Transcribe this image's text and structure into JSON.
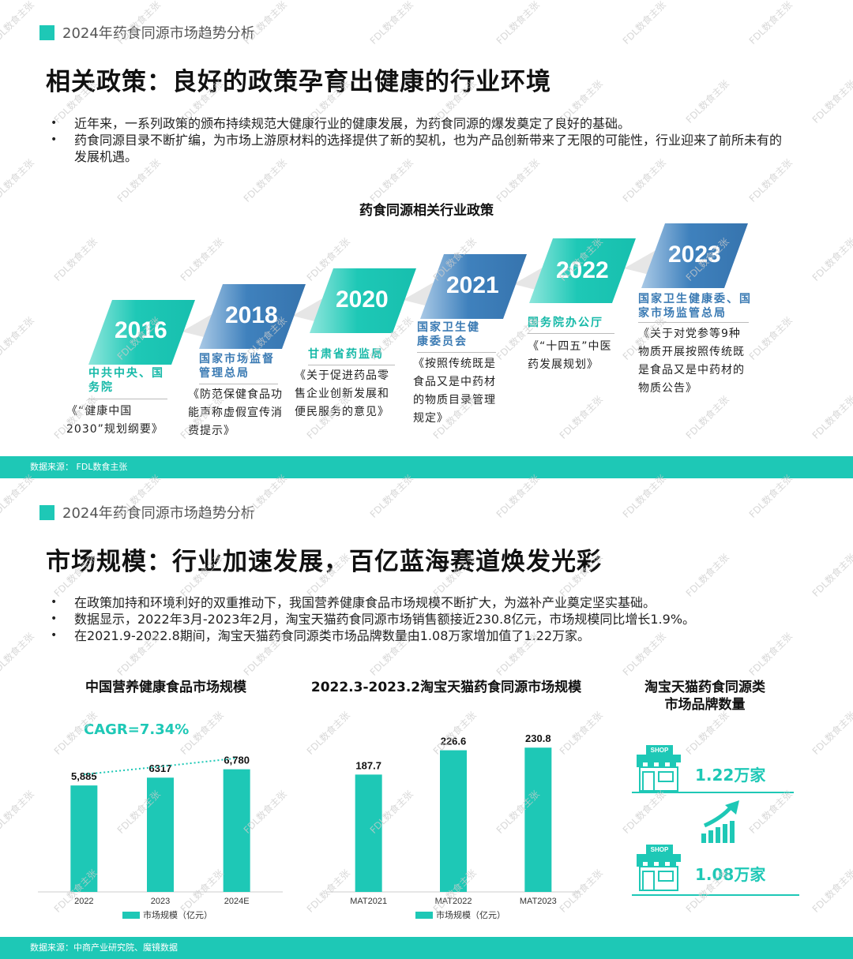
{
  "slide1": {
    "tag": "2024年药食同源市场趋势分析",
    "title": "相关政策：良好的政策孕育出健康的行业环境",
    "bullets": [
      "近年来，一系列政策的颁布持续规范大健康行业的健康发展，为药食同源的爆发奠定了良好的基础。",
      "药食同源目录不断扩编，为市场上游原材料的选择提供了新的契机，也为产品创新带来了无限的可能性，行业迎来了前所未有的发展机遇。"
    ],
    "timeline_title": "药食同源相关行业政策",
    "steps": [
      {
        "year": "2016",
        "org": "中共中央、国务院",
        "doc": "《“健康中国2030”规划纲要》",
        "color": "teal"
      },
      {
        "year": "2018",
        "org": "国家市场监督管理总局",
        "doc": "《防范保健食品功能声称虚假宣传消费提示》",
        "color": "blue"
      },
      {
        "year": "2020",
        "org": "甘肃省药监局",
        "doc": "《关于促进药品零售企业创新发展和便民服务的意见》",
        "color": "teal"
      },
      {
        "year": "2021",
        "org": "国家卫生健康委员会",
        "doc": "《按照传统既是食品又是中药材的物质目录管理规定》",
        "color": "blue"
      },
      {
        "year": "2022",
        "org": "国务院办公厅",
        "doc": "《“十四五”中医药发展规划》",
        "color": "teal"
      },
      {
        "year": "2023",
        "org": "国家卫生健康委、国家市场监管总局",
        "doc": "《关于对党参等9种物质开展按照传统既是食品又是中药材的物质公告》",
        "color": "blue"
      }
    ],
    "footer": "数据来源：   FDL数食主张"
  },
  "slide2": {
    "tag": "2024年药食同源市场趋势分析",
    "title": "市场规模：行业加速发展，百亿蓝海赛道焕发光彩",
    "bullets": [
      "在政策加持和环境利好的双重推动下，我国营养健康食品市场规模不断扩大，为滋补产业奠定坚实基础。",
      "数据显示，2022年3月-2023年2月，淘宝天猫药食同源市场销售额接近230.8亿元，市场规模同比增长1.9%。",
      "在2021.9-2022.8期间，淘宝天猫药食同源类市场品牌数量由1.08万家增加值了1.22万家。"
    ],
    "footer": "数据来源：中商产业研究院、魔镜数据",
    "brand": {
      "title_line1": "淘宝天猫药食同源类",
      "title_line2": "市场品牌数量",
      "top_value": "1.22万家",
      "bottom_value": "1.08万家",
      "shop_label": "SHOP"
    }
  },
  "chart_data": [
    {
      "type": "bar",
      "title": "中国营养健康食品市场规模",
      "categories": [
        "2022",
        "2023",
        "2024E"
      ],
      "series": [
        {
          "name": "市场规模（亿元）",
          "values": [
            5885,
            6317,
            6780
          ]
        }
      ],
      "data_labels": [
        "5,885",
        "6317",
        "6,780"
      ],
      "annotation": "CAGR=7.34%",
      "trendline": true,
      "ylim": [
        0,
        7200
      ],
      "color": "#1ec8b6"
    },
    {
      "type": "bar",
      "title": "2022.3-2023.2淘宝天猫药食同源市场规模",
      "categories": [
        "MAT2021",
        "MAT2022",
        "MAT2023"
      ],
      "series": [
        {
          "name": "市场规模（亿元）",
          "values": [
            187.7,
            226.6,
            230.8
          ]
        }
      ],
      "data_labels": [
        "187.7",
        "226.6",
        "230.8"
      ],
      "ylim": [
        0,
        250
      ],
      "color": "#1ec8b6"
    }
  ],
  "watermark": "FDL数食主张"
}
